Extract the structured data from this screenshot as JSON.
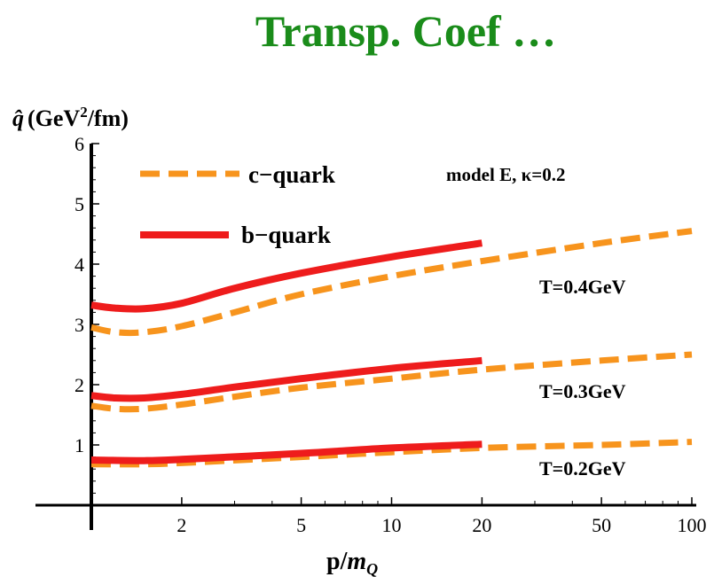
{
  "page": {
    "title": "Transp. Coef …"
  },
  "chart_data": {
    "type": "line",
    "title": "",
    "ylabel": "q̂ (GeV²/fm)",
    "xlabel": "p/m_Q",
    "x_scale": "log",
    "xlim": [
      1,
      100
    ],
    "ylim": [
      0,
      6
    ],
    "x_ticks": [
      2,
      5,
      10,
      20,
      50,
      100
    ],
    "y_ticks": [
      1,
      2,
      3,
      4,
      5,
      6
    ],
    "annotation": "model E, κ=0.2",
    "legend": [
      {
        "label": "c−quark",
        "style": "dashed",
        "color": "#f7941d"
      },
      {
        "label": "b−quark",
        "style": "solid",
        "color": "#ee1c1c"
      }
    ],
    "curve_labels": [
      "T=0.4GeV",
      "T=0.3GeV",
      "T=0.2GeV"
    ],
    "series": [
      {
        "quark": "c",
        "temperature": "T=0.4GeV",
        "x": [
          1,
          1.2,
          1.5,
          2,
          3,
          5,
          10,
          20,
          50,
          100
        ],
        "y": [
          2.95,
          2.87,
          2.87,
          2.97,
          3.2,
          3.5,
          3.8,
          4.05,
          4.35,
          4.55
        ]
      },
      {
        "quark": "b",
        "temperature": "T=0.4GeV",
        "x": [
          1,
          1.2,
          1.5,
          2,
          3,
          5,
          10,
          20
        ],
        "y": [
          3.32,
          3.27,
          3.26,
          3.35,
          3.6,
          3.85,
          4.12,
          4.35
        ]
      },
      {
        "quark": "c",
        "temperature": "T=0.3GeV",
        "x": [
          1,
          1.2,
          1.5,
          2,
          3,
          5,
          10,
          20,
          50,
          100
        ],
        "y": [
          1.65,
          1.6,
          1.6,
          1.67,
          1.8,
          1.95,
          2.1,
          2.25,
          2.4,
          2.5
        ]
      },
      {
        "quark": "b",
        "temperature": "T=0.3GeV",
        "x": [
          1,
          1.2,
          1.5,
          2,
          3,
          5,
          10,
          20
        ],
        "y": [
          1.82,
          1.78,
          1.78,
          1.84,
          1.96,
          2.1,
          2.27,
          2.4
        ]
      },
      {
        "quark": "c",
        "temperature": "T=0.2GeV",
        "x": [
          1,
          1.5,
          2,
          5,
          10,
          20,
          50,
          100
        ],
        "y": [
          0.68,
          0.68,
          0.7,
          0.8,
          0.88,
          0.95,
          1.0,
          1.05
        ]
      },
      {
        "quark": "b",
        "temperature": "T=0.2GeV",
        "x": [
          1,
          1.5,
          2,
          5,
          10,
          20
        ],
        "y": [
          0.75,
          0.74,
          0.76,
          0.86,
          0.95,
          1.01
        ]
      }
    ]
  }
}
